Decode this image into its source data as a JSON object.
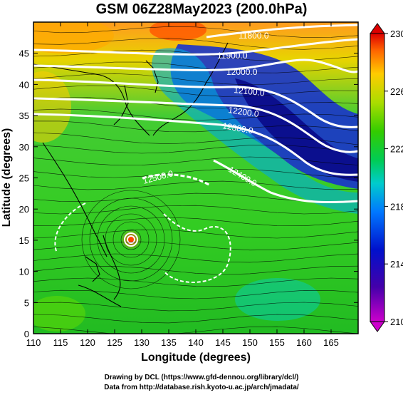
{
  "title": "GSM 06Z28May2023 (200.0hPa)",
  "xaxis": {
    "label": "Longitude (degrees)",
    "ticks": [
      110,
      115,
      120,
      125,
      130,
      135,
      140,
      145,
      150,
      155,
      160,
      165
    ],
    "range": [
      110,
      170
    ]
  },
  "yaxis": {
    "label": "Latitude  (degrees)",
    "ticks": [
      0,
      5,
      10,
      15,
      20,
      25,
      30,
      35,
      40,
      45
    ],
    "range": [
      0,
      50
    ]
  },
  "colorbar": {
    "ticks": [
      210,
      214,
      218,
      222,
      226,
      230
    ],
    "range": [
      210,
      230
    ],
    "colors": [
      "#cc00cc",
      "#0000aa",
      "#0066ff",
      "#00ccdd",
      "#00dd66",
      "#22cc22",
      "#99dd00",
      "#eedd00",
      "#ff8800",
      "#dd0000"
    ]
  },
  "contours": [
    {
      "label": "11800.0"
    },
    {
      "label": "11900.0"
    },
    {
      "label": "12000.0"
    },
    {
      "label": "12100.0"
    },
    {
      "label": "12200.0"
    },
    {
      "label": "12300.0"
    },
    {
      "label": "12400.0"
    },
    {
      "label": "12500.0"
    }
  ],
  "credits": {
    "line1": "Drawing by DCL (https://www.gfd-dennou.org/library/dcl/)",
    "line2": "Data from http://database.rish.kyoto-u.ac.jp/arch/jmadata/"
  }
}
